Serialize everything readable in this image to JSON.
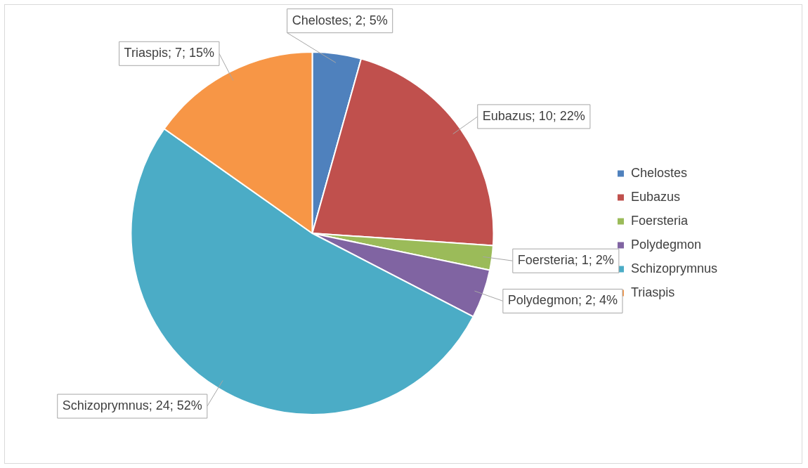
{
  "chart_data": {
    "type": "pie",
    "categories": [
      "Chelostes",
      "Eubazus",
      "Foersteria",
      "Polydegmon",
      "Schizoprymnus",
      "Triaspis"
    ],
    "values": [
      2,
      10,
      1,
      2,
      24,
      7
    ],
    "colors": [
      "#4f81bd",
      "#c0504d",
      "#9bbb59",
      "#8064a2",
      "#4bacc6",
      "#f79646"
    ],
    "value_labels": [
      "Chelostes; 2; 5%",
      "Eubazus; 10; 22%",
      "Foersteria; 1; 2%",
      "Polydegmon; 2; 4%",
      "Schizoprymnus; 24; 52%",
      "Triaspis; 7; 15%"
    ],
    "legend": "right"
  }
}
